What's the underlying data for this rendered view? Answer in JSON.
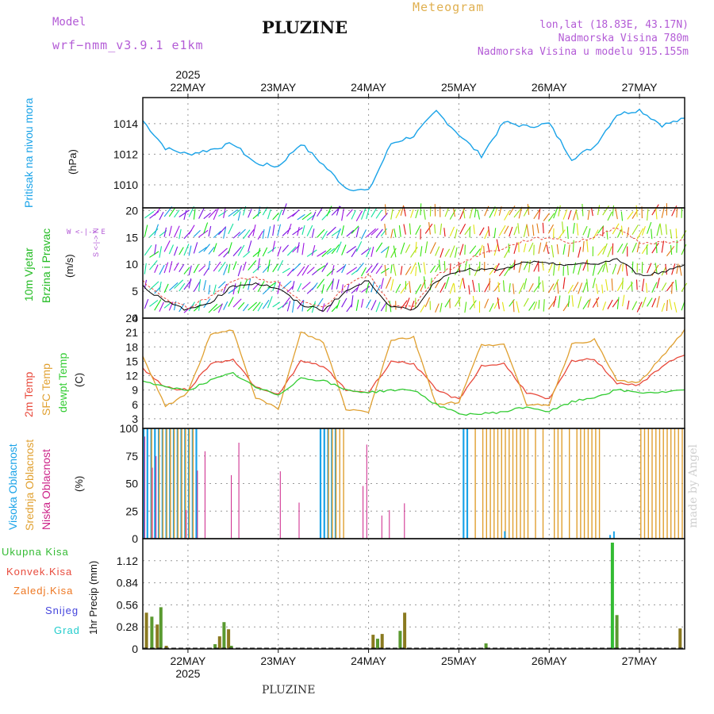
{
  "header": {
    "model_label": "Model",
    "model_name": "wrf−nmm_v3.9.1 e1km",
    "title": "PLUZINE",
    "meteogram": "Meteogram",
    "coords": "lon,lat (18.83E, 43.17N)",
    "elevation": "Nadmorska Visina 780m",
    "model_elevation": "Nadmorska Visina u modelu 915.155m"
  },
  "footer": {
    "station": "PLUZINE",
    "credit": "made by Angel"
  },
  "colors": {
    "pressure": "#1aa3e8",
    "wind_green": "#22bb22",
    "wind_speed": "#000000",
    "temp2m": "#e84a3c",
    "sfc_temp": "#e0a030",
    "dewpoint": "#33cc33",
    "cloud_high": "#1aa3e8",
    "cloud_mid": "#e0a030",
    "cloud_low": "#cc2288",
    "precip_total": "#33bb33",
    "precip_conv": "#e84a3c",
    "precip_frozen": "#ee7722",
    "snow": "#4444dd",
    "hail": "#22cccc"
  },
  "time_axis": {
    "year": "2025",
    "day_labels": [
      "22MAY",
      "23MAY",
      "24MAY",
      "25MAY",
      "26MAY",
      "27MAY"
    ],
    "start": "2025-05-21 12:00",
    "end": "2025-05-27 12:00"
  },
  "panels": {
    "pressure": {
      "label": "Pritisak na nivou mora",
      "unit": "(hPa)"
    },
    "wind": {
      "label1": "10m Vjetar",
      "label2": "Brzina i Pravac",
      "unit": "(m/s)",
      "compass": "W  <-|->  E",
      "compass_ns": "S <-|-> N"
    },
    "temp": {
      "label1": "2m Temp",
      "label2": "SFC Temp",
      "label3": "dewpt Temp",
      "unit": "(C)"
    },
    "cloud": {
      "label1": "Visoka Oblacnost",
      "label2": "Srednja Oblacnost",
      "label3": "Niska Oblacnost",
      "unit": "(%)"
    },
    "precip": {
      "unit": "1hr Precip (mm)",
      "legend": [
        "Ukupna Kisa",
        "Konvek.Kisa",
        "Zaledj.Kisa",
        "Snijeg",
        "Grad"
      ]
    }
  },
  "chart_data": [
    {
      "type": "line",
      "title": "Pritisak na nivou mora",
      "ylabel": "(hPa)",
      "ylim": [
        1008.5,
        1015.7
      ],
      "yticks": [
        1010,
        1012,
        1014
      ],
      "grid": true,
      "x_days": [
        0,
        0.25,
        0.5,
        0.75,
        1,
        1.25,
        1.5,
        1.75,
        2,
        2.25,
        2.5,
        2.75,
        3,
        3.25,
        3.5,
        3.75,
        4,
        4.25,
        4.5,
        4.75,
        5,
        5.25,
        5.5,
        5.75,
        6
      ],
      "series": [
        {
          "name": "Pritisak na nivou mora",
          "values": [
            1014.2,
            1012.4,
            1012.0,
            1012.3,
            1012.7,
            1011.4,
            1011.2,
            1012.7,
            1011.3,
            1009.8,
            1009.6,
            1012.7,
            1013.2,
            1014.8,
            1013.3,
            1011.9,
            1014.1,
            1013.8,
            1014.0,
            1011.7,
            1012.5,
            1014.6,
            1014.9,
            1013.9,
            1014.3
          ]
        }
      ]
    },
    {
      "type": "line",
      "title": "10m Vjetar Brzina i Pravac",
      "ylabel": "(m/s)",
      "ylim": [
        0,
        20.5
      ],
      "yticks": [
        0,
        5,
        10,
        15,
        20
      ],
      "grid": true,
      "x_days": [
        0,
        0.25,
        0.5,
        0.75,
        1,
        1.25,
        1.5,
        1.75,
        2,
        2.25,
        2.5,
        2.75,
        3,
        3.25,
        3.5,
        3.75,
        4,
        4.25,
        4.5,
        4.75,
        5,
        5.25,
        5.5,
        5.75,
        6
      ],
      "series": [
        {
          "name": "speed",
          "values": [
            6,
            3,
            1.5,
            3,
            6,
            6.5,
            5.5,
            2.5,
            1.5,
            5,
            7,
            2,
            1.5,
            7,
            9,
            9,
            9,
            10.5,
            10,
            10,
            10,
            11,
            8,
            8.5,
            10
          ]
        },
        {
          "name": "gust",
          "values": [
            7,
            3.5,
            2,
            4,
            7,
            7.5,
            6.5,
            3,
            2,
            6,
            8,
            2.5,
            2,
            8,
            10,
            12,
            13,
            14.5,
            15,
            14,
            15,
            17,
            14,
            14,
            14.5
          ]
        }
      ]
    },
    {
      "type": "line",
      "title": "2m Temp / SFC Temp / dewpt Temp",
      "ylabel": "(C)",
      "ylim": [
        1,
        24
      ],
      "yticks": [
        3,
        6,
        9,
        12,
        15,
        18,
        21,
        24
      ],
      "grid": true,
      "x_days": [
        0,
        0.25,
        0.5,
        0.75,
        1,
        1.25,
        1.5,
        1.75,
        2,
        2.25,
        2.5,
        2.75,
        3,
        3.25,
        3.5,
        3.75,
        4,
        4.25,
        4.5,
        4.75,
        5,
        5.25,
        5.5,
        5.75,
        6
      ],
      "series": [
        {
          "name": "2m Temp",
          "values": [
            13.5,
            9.5,
            9,
            14.5,
            15.5,
            9.5,
            8,
            15,
            14,
            9,
            8.5,
            15,
            14.5,
            9,
            7,
            14,
            14.5,
            8.5,
            7,
            15,
            15.5,
            10.5,
            10,
            14,
            16.5
          ]
        },
        {
          "name": "SFC Temp",
          "values": [
            16,
            5.5,
            8.5,
            20.5,
            21.5,
            7.5,
            5,
            21,
            19,
            5,
            4.5,
            19.5,
            20,
            6,
            6.5,
            18.5,
            18.5,
            6,
            6,
            18.5,
            19.5,
            11,
            10.5,
            16,
            21.5
          ]
        },
        {
          "name": "dewpt Temp",
          "values": [
            11,
            9.5,
            9,
            11,
            12.5,
            9.5,
            8,
            11.5,
            11,
            9,
            8.5,
            9,
            9,
            6,
            4,
            4,
            4.5,
            5.5,
            4.5,
            6.5,
            7.5,
            9,
            8.5,
            8.5,
            9
          ]
        }
      ]
    },
    {
      "type": "bar",
      "title": "Oblacnost",
      "ylabel": "(%)",
      "ylim": [
        0,
        100
      ],
      "yticks": [
        0,
        25,
        50,
        75,
        100
      ],
      "grid": true,
      "note": "hourly cloud cover bars, high/mid/low layers"
    },
    {
      "type": "bar",
      "title": "1hr Precip",
      "ylabel": "1hr Precip (mm)",
      "ylim": [
        0,
        1.4
      ],
      "yticks": [
        0,
        0.28,
        0.56,
        0.84,
        1.12
      ],
      "grid": true,
      "series": [
        {
          "name": "Ukupna Kisa",
          "x_days": [
            0.04,
            0.1,
            0.16,
            0.2,
            0.26,
            0.8,
            0.85,
            0.9,
            0.95,
            0.98,
            2.55,
            2.6,
            2.65,
            2.85,
            2.9,
            3.8,
            5.2,
            5.25,
            5.95
          ],
          "values": [
            0.46,
            0.41,
            0.31,
            0.53,
            0.04,
            0.06,
            0.16,
            0.34,
            0.25,
            0.04,
            0.18,
            0.13,
            0.19,
            0.23,
            0.46,
            0.07,
            1.35,
            0.43,
            0.26
          ]
        }
      ]
    }
  ]
}
